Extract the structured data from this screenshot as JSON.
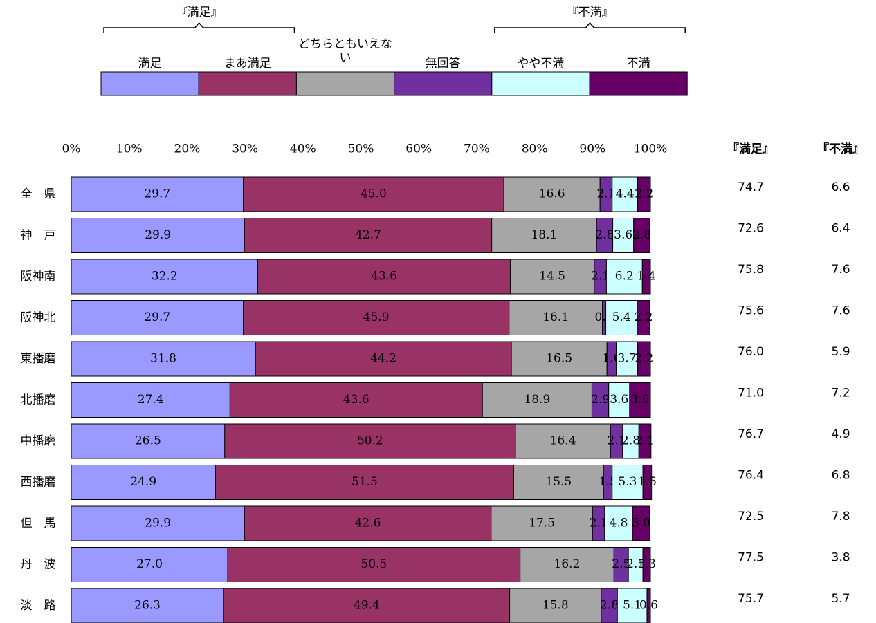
{
  "chart_data": {
    "type": "stacked-barh",
    "categories": [
      "全　県",
      "神　戸",
      "阪神南",
      "阪神北",
      "東播磨",
      "北播磨",
      "中播磨",
      "西播磨",
      "但　馬",
      "丹　波",
      "淡　路"
    ],
    "series": [
      {
        "name": "満足",
        "color": "#9999ff",
        "values": [
          29.7,
          29.9,
          32.2,
          29.7,
          31.8,
          27.4,
          26.5,
          24.9,
          29.9,
          27.0,
          26.3
        ],
        "value_labels": [
          "29.7",
          "29.9",
          "32.2",
          "29.7",
          "31.8",
          "27.4",
          "26.5",
          "24.9",
          "29.9",
          "27.0",
          "26.3"
        ]
      },
      {
        "name": "まあ満足",
        "color": "#993366",
        "values": [
          45.0,
          42.7,
          43.6,
          45.9,
          44.2,
          43.6,
          50.2,
          51.5,
          42.6,
          50.5,
          49.4
        ],
        "value_labels": [
          "45.0",
          "42.7",
          "43.6",
          "45.9",
          "44.2",
          "43.6",
          "50.2",
          "51.5",
          "42.6",
          "50.5",
          "49.4"
        ]
      },
      {
        "name": "どちらともいえない",
        "color": "#a6a6a6",
        "values": [
          16.6,
          18.1,
          14.5,
          16.1,
          16.5,
          18.9,
          16.4,
          15.5,
          17.5,
          16.2,
          15.8
        ],
        "value_labels": [
          "16.6",
          "18.1",
          "14.5",
          "16.1",
          "16.5",
          "18.9",
          "16.4",
          "15.5",
          "17.5",
          "16.2",
          "15.8"
        ]
      },
      {
        "name": "無回答",
        "color": "#7030a0",
        "values": [
          2.1,
          2.8,
          2.1,
          0.6,
          1.6,
          2.9,
          2.1,
          1.5,
          2.1,
          2.5,
          2.8
        ],
        "value_labels": [
          "2.1",
          "2.8",
          "2.1",
          "0.6",
          "1.6",
          "2.9",
          "2.1",
          "1.5",
          "2.1",
          "2.5",
          "2.8"
        ]
      },
      {
        "name": "やや不満",
        "color": "#ccffff",
        "values": [
          4.4,
          3.6,
          6.2,
          5.4,
          3.7,
          3.6,
          2.8,
          5.3,
          4.8,
          2.5,
          5.1
        ],
        "value_labels": [
          "4.4",
          "3.6",
          "6.2",
          "5.4",
          "3.7",
          "3.6",
          "2.8",
          "5.3",
          "4.8",
          "2.5",
          "5.1"
        ]
      },
      {
        "name": "不満",
        "color": "#660066",
        "values": [
          2.2,
          2.8,
          1.4,
          2.2,
          2.2,
          3.6,
          2.1,
          1.5,
          3.0,
          1.3,
          0.6
        ],
        "value_labels": [
          "2.2",
          "2.8",
          "1.4",
          "2.2",
          "2.2",
          "3.6",
          "2.1",
          "1.5",
          "3.0",
          "1.3",
          "0.6"
        ]
      }
    ],
    "legend_groups": [
      {
        "label": "『満足』",
        "series": [
          0,
          1
        ]
      },
      {
        "label": "『不満』",
        "series": [
          4,
          5
        ]
      }
    ],
    "summary_columns": [
      {
        "name": "『満足』",
        "values": [
          74.7,
          72.6,
          75.8,
          75.6,
          76.0,
          71.0,
          76.7,
          76.4,
          72.5,
          77.5,
          75.7
        ],
        "value_labels": [
          "74.7",
          "72.6",
          "75.8",
          "75.6",
          "76.0",
          "71.0",
          "76.7",
          "76.4",
          "72.5",
          "77.5",
          "75.7"
        ]
      },
      {
        "name": "『不満』",
        "values": [
          6.6,
          6.4,
          7.6,
          7.6,
          5.9,
          7.2,
          4.9,
          6.8,
          7.8,
          3.8,
          5.7
        ],
        "value_labels": [
          "6.6",
          "6.4",
          "7.6",
          "7.6",
          "5.9",
          "7.2",
          "4.9",
          "6.8",
          "7.8",
          "3.8",
          "5.7"
        ]
      }
    ],
    "xlim": [
      0,
      100
    ],
    "xticks": [
      {
        "value": 0,
        "label": "0%"
      },
      {
        "value": 10,
        "label": "10%"
      },
      {
        "value": 20,
        "label": "20%"
      },
      {
        "value": 30,
        "label": "30%"
      },
      {
        "value": 40,
        "label": "40%"
      },
      {
        "value": 50,
        "label": "50%"
      },
      {
        "value": 60,
        "label": "60%"
      },
      {
        "value": 70,
        "label": "70%"
      },
      {
        "value": 80,
        "label": "80%"
      },
      {
        "value": 90,
        "label": "90%"
      },
      {
        "value": 100,
        "label": "100%"
      }
    ]
  }
}
